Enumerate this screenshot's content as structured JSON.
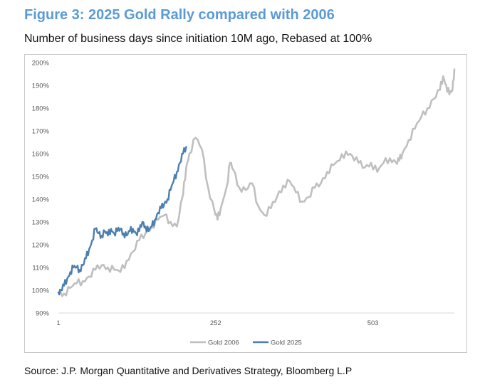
{
  "header": {
    "title": "Figure 3: 2025 Gold Rally compared with 2006",
    "subtitle": "Number of business days since initiation 10M ago, Rebased at 100%"
  },
  "footer": {
    "source": "Source: J.P. Morgan Quantitative and Derivatives Strategy, Bloomberg L.P"
  },
  "chart_data": {
    "type": "line",
    "title": "Figure 3: 2025 Gold Rally compared with 2006",
    "subtitle": "Number of business days since initiation 10M ago, Rebased at 100%",
    "xlabel": "",
    "ylabel": "",
    "xlim": [
      1,
      633
    ],
    "ylim": [
      90,
      200
    ],
    "x_ticks": [
      1,
      252,
      503
    ],
    "x_tick_labels": [
      "1",
      "252",
      "503"
    ],
    "y_ticks": [
      90,
      100,
      110,
      120,
      130,
      140,
      150,
      160,
      170,
      180,
      190,
      200
    ],
    "y_tick_labels": [
      "90%",
      "100%",
      "110%",
      "120%",
      "130%",
      "140%",
      "150%",
      "160%",
      "170%",
      "180%",
      "190%",
      "200%"
    ],
    "grid": false,
    "legend_position": "bottom",
    "series": [
      {
        "name": "Gold 2006",
        "color": "#bfbfbf",
        "x": [
          1,
          10,
          20,
          30,
          40,
          50,
          60,
          70,
          80,
          90,
          100,
          110,
          120,
          130,
          140,
          150,
          160,
          170,
          180,
          190,
          200,
          205,
          210,
          220,
          230,
          240,
          250,
          255,
          260,
          270,
          275,
          280,
          290,
          300,
          310,
          320,
          330,
          340,
          350,
          360,
          370,
          380,
          390,
          400,
          410,
          420,
          430,
          440,
          450,
          460,
          470,
          480,
          490,
          500,
          510,
          520,
          530,
          540,
          545,
          550,
          560,
          570,
          580,
          590,
          600,
          610,
          615,
          620,
          625,
          630,
          633
        ],
        "values": [
          99,
          98.5,
          101,
          103,
          104,
          106,
          109,
          111,
          110,
          109,
          108,
          113,
          117,
          122,
          125,
          128,
          131,
          133,
          130,
          128,
          142,
          154,
          160,
          167,
          162,
          145,
          135,
          131,
          136,
          146,
          156,
          153,
          145,
          144,
          147,
          137,
          133,
          136,
          141,
          146,
          148,
          143,
          139,
          141,
          145,
          147,
          152,
          155,
          157,
          161,
          159,
          156,
          154,
          156,
          152,
          156,
          158,
          156,
          157,
          160,
          166,
          171,
          176,
          180,
          184,
          188,
          194,
          190,
          186,
          188,
          197
        ]
      },
      {
        "name": "Gold 2025",
        "color": "#4a7fb0",
        "x": [
          1,
          5,
          10,
          15,
          20,
          25,
          30,
          35,
          40,
          45,
          50,
          55,
          60,
          65,
          70,
          75,
          80,
          85,
          90,
          95,
          100,
          105,
          110,
          115,
          120,
          125,
          130,
          135,
          140,
          145,
          150,
          155,
          160,
          165,
          170,
          175,
          180,
          185,
          190,
          195,
          200,
          205
        ],
        "values": [
          99,
          100,
          102,
          105,
          108,
          110,
          110,
          109,
          111,
          114,
          118,
          122,
          127,
          125,
          124,
          126,
          124,
          127,
          125,
          126,
          127,
          125,
          124,
          126,
          127,
          125,
          126,
          130,
          128,
          126,
          128,
          131,
          134,
          136,
          138,
          140,
          144,
          148,
          152,
          156,
          160,
          163
        ]
      }
    ]
  }
}
